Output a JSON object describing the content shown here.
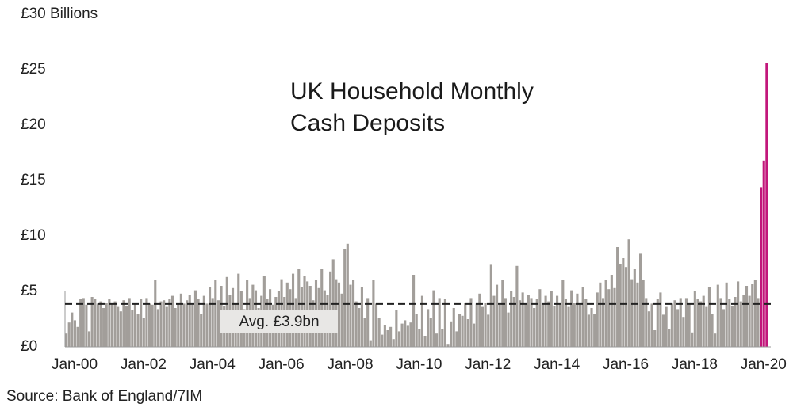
{
  "chart_data": {
    "type": "bar",
    "title": "UK Household Monthly Cash Deposits",
    "source": "Source: Bank of England/7IM",
    "categories": [
      "Jan-00",
      null,
      null,
      null,
      null,
      null,
      null,
      null,
      null,
      null,
      null,
      null,
      null,
      null,
      null,
      null,
      null,
      null,
      null,
      null,
      null,
      null,
      null,
      null,
      "Jan-02",
      null,
      null,
      null,
      null,
      null,
      null,
      null,
      null,
      null,
      null,
      null,
      null,
      null,
      null,
      null,
      null,
      null,
      null,
      null,
      null,
      null,
      null,
      null,
      "Jan-04",
      null,
      null,
      null,
      null,
      null,
      null,
      null,
      null,
      null,
      null,
      null,
      null,
      null,
      null,
      null,
      null,
      null,
      null,
      null,
      null,
      null,
      null,
      null,
      "Jan-06",
      null,
      null,
      null,
      null,
      null,
      null,
      null,
      null,
      null,
      null,
      null,
      null,
      null,
      null,
      null,
      null,
      null,
      null,
      null,
      null,
      null,
      null,
      null,
      "Jan-08",
      null,
      null,
      null,
      null,
      null,
      null,
      null,
      null,
      null,
      null,
      null,
      null,
      null,
      null,
      null,
      null,
      null,
      null,
      null,
      null,
      null,
      null,
      null,
      "Jan-10",
      null,
      null,
      null,
      null,
      null,
      null,
      null,
      null,
      null,
      null,
      null,
      null,
      null,
      null,
      null,
      null,
      null,
      null,
      null,
      null,
      null,
      null,
      null,
      "Jan-12",
      null,
      null,
      null,
      null,
      null,
      null,
      null,
      null,
      null,
      null,
      null,
      null,
      null,
      null,
      null,
      null,
      null,
      null,
      null,
      null,
      null,
      null,
      null,
      "Jan-14",
      null,
      null,
      null,
      null,
      null,
      null,
      null,
      null,
      null,
      null,
      null,
      null,
      null,
      null,
      null,
      null,
      null,
      null,
      null,
      null,
      null,
      null,
      null,
      "Jan-16",
      null,
      null,
      null,
      null,
      null,
      null,
      null,
      null,
      null,
      null,
      null,
      null,
      null,
      null,
      null,
      null,
      null,
      null,
      null,
      null,
      null,
      null,
      null,
      "Jan-18",
      null,
      null,
      null,
      null,
      null,
      null,
      null,
      null,
      null,
      null,
      null,
      null,
      null,
      null,
      null,
      null,
      null,
      null,
      null,
      null,
      null,
      null,
      null,
      "Jan-20",
      null,
      null,
      null,
      null
    ],
    "values": [
      1.2,
      2.2,
      3.1,
      2.4,
      1.8,
      4.3,
      4.4,
      3.8,
      1.4,
      4.5,
      4.3,
      3.9,
      4.1,
      3.5,
      4.0,
      4.3,
      3.9,
      4.1,
      3.6,
      3.2,
      4.2,
      3.7,
      4.4,
      3.3,
      4.0,
      3.0,
      4.3,
      2.6,
      4.4,
      3.9,
      3.8,
      6.0,
      3.4,
      4.1,
      4.2,
      3.6,
      4.3,
      4.6,
      3.5,
      4.0,
      4.8,
      3.9,
      4.2,
      4.7,
      3.8,
      5.1,
      4.3,
      3.0,
      4.6,
      3.9,
      5.4,
      4.4,
      6.0,
      4.2,
      5.5,
      3.7,
      6.3,
      4.7,
      5.3,
      4.0,
      6.6,
      5.0,
      3.4,
      6.0,
      4.4,
      5.6,
      5.1,
      3.5,
      4.6,
      6.4,
      4.3,
      5.2,
      3.8,
      4.5,
      5.0,
      6.1,
      4.5,
      5.8,
      5.2,
      6.6,
      4.4,
      7.0,
      5.4,
      6.4,
      5.9,
      5.5,
      4.2,
      6.0,
      5.3,
      7.0,
      5.1,
      4.7,
      6.8,
      7.9,
      6.1,
      5.8,
      4.8,
      8.8,
      9.3,
      5.6,
      6.0,
      4.1,
      3.5,
      5.4,
      2.6,
      4.4,
      0.6,
      6.0,
      3.9,
      2.6,
      1.1,
      2.0,
      1.5,
      1.8,
      0.7,
      3.3,
      1.4,
      2.1,
      2.4,
      1.9,
      2.2,
      6.5,
      3.0,
      1.6,
      4.6,
      1.0,
      3.4,
      2.6,
      5.1,
      1.2,
      4.4,
      1.6,
      4.3,
      0.2,
      2.3,
      3.5,
      1.4,
      3.0,
      2.8,
      4.0,
      2.5,
      4.4,
      2.1,
      3.9,
      4.8,
      3.6,
      4.0,
      2.9,
      7.4,
      4.6,
      5.6,
      3.8,
      6.0,
      4.4,
      3.1,
      5.0,
      4.5,
      7.3,
      4.2,
      4.9,
      3.9,
      4.7,
      4.4,
      3.5,
      4.3,
      5.2,
      4.0,
      4.6,
      4.1,
      5.0,
      3.7,
      4.6,
      3.9,
      6.0,
      4.3,
      3.6,
      5.1,
      4.0,
      4.8,
      3.8,
      5.4,
      4.3,
      2.9,
      3.5,
      3.0,
      4.9,
      5.8,
      4.4,
      6.0,
      5.2,
      6.5,
      5.3,
      9.0,
      7.5,
      8.0,
      7.2,
      9.7,
      6.1,
      7.0,
      5.8,
      8.4,
      6.0,
      4.4,
      3.2,
      3.9,
      1.5,
      4.3,
      4.9,
      2.9,
      3.6,
      1.6,
      3.9,
      4.2,
      3.4,
      4.4,
      2.7,
      4.4,
      3.9,
      1.3,
      5.0,
      4.3,
      4.1,
      4.6,
      3.6,
      5.4,
      3.0,
      1.2,
      5.6,
      4.4,
      3.4,
      5.8,
      4.3,
      3.7,
      4.5,
      5.9,
      4.1,
      4.7,
      5.5,
      4.6,
      5.7,
      6.0,
      4.4,
      14.4,
      16.8,
      25.6
    ],
    "color": "#a29e9a",
    "highlight_color": "#c2177b",
    "highlight_count": 3,
    "ylim": [
      0,
      30
    ],
    "yticks": [
      {
        "value": 0,
        "label": "£0"
      },
      {
        "value": 5,
        "label": "£5"
      },
      {
        "value": 10,
        "label": "£10"
      },
      {
        "value": 15,
        "label": "£15"
      },
      {
        "value": 20,
        "label": "£20"
      },
      {
        "value": 25,
        "label": "£25"
      },
      {
        "value": 30,
        "label": "£30 Billions"
      }
    ],
    "reference_line": {
      "value": 3.9,
      "label": "Avg. £3.9bn"
    },
    "grid": false
  }
}
